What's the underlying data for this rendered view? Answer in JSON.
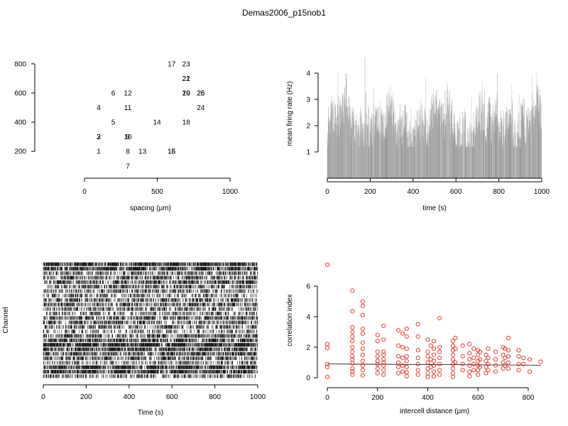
{
  "title": "Demas2006_p15nob1",
  "chart_data": [
    {
      "type": "scatter",
      "panel": "electrode-layout",
      "xlabel": "spacing (µm)",
      "ylabel": "",
      "xlim": [
        0,
        1000
      ],
      "ylim": [
        0,
        800
      ],
      "x_ticks": [
        0,
        500,
        1000
      ],
      "y_ticks": [
        200,
        400,
        600,
        800
      ],
      "points": [
        {
          "label": "1",
          "x": 100,
          "y": 200
        },
        {
          "label": "2",
          "x": 100,
          "y": 300
        },
        {
          "label": "3",
          "x": 100,
          "y": 300
        },
        {
          "label": "4",
          "x": 100,
          "y": 500
        },
        {
          "label": "5",
          "x": 200,
          "y": 400
        },
        {
          "label": "6",
          "x": 200,
          "y": 600
        },
        {
          "label": "7",
          "x": 300,
          "y": 100
        },
        {
          "label": "8",
          "x": 300,
          "y": 200
        },
        {
          "label": "9",
          "x": 300,
          "y": 300
        },
        {
          "label": "10",
          "x": 300,
          "y": 300
        },
        {
          "label": "11",
          "x": 300,
          "y": 500
        },
        {
          "label": "12",
          "x": 300,
          "y": 600
        },
        {
          "label": "13",
          "x": 400,
          "y": 200
        },
        {
          "label": "14",
          "x": 500,
          "y": 400
        },
        {
          "label": "15",
          "x": 600,
          "y": 200
        },
        {
          "label": "16",
          "x": 600,
          "y": 200
        },
        {
          "label": "17",
          "x": 600,
          "y": 800
        },
        {
          "label": "18",
          "x": 700,
          "y": 400
        },
        {
          "label": "19",
          "x": 700,
          "y": 600
        },
        {
          "label": "20",
          "x": 700,
          "y": 600
        },
        {
          "label": "21",
          "x": 700,
          "y": 700
        },
        {
          "label": "22",
          "x": 700,
          "y": 700
        },
        {
          "label": "23",
          "x": 700,
          "y": 800
        },
        {
          "label": "24",
          "x": 800,
          "y": 500
        },
        {
          "label": "25",
          "x": 800,
          "y": 600
        },
        {
          "label": "26",
          "x": 800,
          "y": 600
        }
      ]
    },
    {
      "type": "bar",
      "panel": "mean-firing-rate",
      "xlabel": "time (s)",
      "ylabel": "mean firing rate (Hz)",
      "xlim": [
        0,
        1000
      ],
      "ylim": [
        0,
        4.5
      ],
      "x_ticks": [
        0,
        200,
        400,
        600,
        800,
        1000
      ],
      "y_ticks": [
        1,
        2,
        3,
        4
      ],
      "bin_seconds": 1,
      "typical_range_hz": [
        1.2,
        4.0
      ],
      "peak": {
        "x": 175,
        "y": 4.6
      }
    },
    {
      "type": "raster",
      "panel": "spike-raster",
      "xlabel": "Time (s)",
      "ylabel": "Channel",
      "xlim": [
        0,
        1000
      ],
      "x_ticks": [
        0,
        200,
        400,
        600,
        800,
        1000
      ],
      "n_channels": 26
    },
    {
      "type": "scatter",
      "panel": "correlation-index",
      "xlabel": "intercell distance (µm)",
      "ylabel": "correlation index",
      "xlim": [
        0,
        850
      ],
      "ylim": [
        0,
        7.5
      ],
      "x_ticks": [
        0,
        200,
        400,
        600,
        800
      ],
      "y_ticks": [
        0,
        2,
        4,
        6
      ],
      "point_color": "#e8271d",
      "fit_line": {
        "x": [
          0,
          850
        ],
        "y": [
          0.9,
          0.82
        ]
      },
      "distances": [
        0,
        100,
        141,
        200,
        224,
        283,
        300,
        316,
        361,
        400,
        412,
        424,
        447,
        500,
        510,
        539,
        566,
        583,
        600,
        608,
        632,
        640,
        670,
        700,
        707,
        721,
        762,
        781,
        806,
        849
      ],
      "points": [
        [
          0,
          7.4
        ],
        [
          0,
          2.2
        ],
        [
          0,
          1.95
        ],
        [
          0,
          0.9
        ],
        [
          0,
          0.7
        ],
        [
          0,
          0.05
        ],
        [
          100,
          5.7
        ],
        [
          100,
          4.35
        ],
        [
          100,
          3.3
        ],
        [
          100,
          3.0
        ],
        [
          100,
          2.7
        ],
        [
          100,
          2.4
        ],
        [
          100,
          2.0
        ],
        [
          100,
          1.7
        ],
        [
          100,
          1.4
        ],
        [
          100,
          1.2
        ],
        [
          100,
          0.95
        ],
        [
          100,
          0.6
        ],
        [
          100,
          0.4
        ],
        [
          100,
          0.2
        ],
        [
          141,
          5.0
        ],
        [
          141,
          4.7
        ],
        [
          141,
          4.1
        ],
        [
          141,
          3.2
        ],
        [
          141,
          2.9
        ],
        [
          141,
          2.3
        ],
        [
          141,
          1.9
        ],
        [
          141,
          1.5
        ],
        [
          141,
          1.1
        ],
        [
          141,
          0.8
        ],
        [
          141,
          0.5
        ],
        [
          141,
          0.15
        ],
        [
          200,
          2.8
        ],
        [
          200,
          2.4
        ],
        [
          200,
          1.7
        ],
        [
          200,
          1.4
        ],
        [
          200,
          1.1
        ],
        [
          200,
          0.9
        ],
        [
          200,
          0.6
        ],
        [
          200,
          0.3
        ],
        [
          224,
          3.4
        ],
        [
          224,
          2.5
        ],
        [
          224,
          1.7
        ],
        [
          224,
          1.5
        ],
        [
          224,
          1.2
        ],
        [
          224,
          1.0
        ],
        [
          224,
          0.8
        ],
        [
          224,
          0.5
        ],
        [
          224,
          0.2
        ],
        [
          283,
          3.1
        ],
        [
          283,
          2.1
        ],
        [
          283,
          1.4
        ],
        [
          283,
          1.0
        ],
        [
          283,
          0.7
        ],
        [
          283,
          0.3
        ],
        [
          300,
          2.9
        ],
        [
          300,
          2.0
        ],
        [
          300,
          1.3
        ],
        [
          300,
          0.8
        ],
        [
          300,
          0.4
        ],
        [
          316,
          3.2
        ],
        [
          316,
          2.7
        ],
        [
          316,
          1.9
        ],
        [
          316,
          1.4
        ],
        [
          316,
          1.1
        ],
        [
          316,
          0.7
        ],
        [
          316,
          0.35
        ],
        [
          316,
          0.1
        ],
        [
          361,
          3.5
        ],
        [
          361,
          2.7
        ],
        [
          361,
          1.8
        ],
        [
          361,
          1.3
        ],
        [
          361,
          0.9
        ],
        [
          361,
          0.5
        ],
        [
          361,
          0.2
        ],
        [
          400,
          2.5
        ],
        [
          400,
          1.7
        ],
        [
          400,
          1.4
        ],
        [
          400,
          1.0
        ],
        [
          400,
          0.6
        ],
        [
          400,
          0.3
        ],
        [
          400,
          0.05
        ],
        [
          412,
          2.1
        ],
        [
          412,
          1.2
        ],
        [
          412,
          0.7
        ],
        [
          424,
          2.4
        ],
        [
          424,
          1.9
        ],
        [
          424,
          1.5
        ],
        [
          424,
          1.1
        ],
        [
          424,
          0.8
        ],
        [
          424,
          0.4
        ],
        [
          424,
          0.1
        ],
        [
          447,
          3.9
        ],
        [
          447,
          2.0
        ],
        [
          447,
          1.7
        ],
        [
          447,
          1.3
        ],
        [
          447,
          0.9
        ],
        [
          447,
          0.5
        ],
        [
          447,
          0.2
        ],
        [
          500,
          2.4
        ],
        [
          500,
          2.1
        ],
        [
          500,
          1.8
        ],
        [
          500,
          1.5
        ],
        [
          500,
          1.2
        ],
        [
          500,
          0.9
        ],
        [
          500,
          0.6
        ],
        [
          500,
          0.3
        ],
        [
          500,
          0.05
        ],
        [
          510,
          2.6
        ],
        [
          510,
          1.9
        ],
        [
          510,
          1.0
        ],
        [
          539,
          2.1
        ],
        [
          539,
          1.4
        ],
        [
          539,
          0.9
        ],
        [
          539,
          0.5
        ],
        [
          566,
          2.2
        ],
        [
          566,
          1.6
        ],
        [
          566,
          1.2
        ],
        [
          566,
          0.8
        ],
        [
          566,
          0.4
        ],
        [
          566,
          0.1
        ],
        [
          583,
          1.9
        ],
        [
          583,
          1.3
        ],
        [
          583,
          0.9
        ],
        [
          583,
          0.5
        ],
        [
          600,
          1.8
        ],
        [
          600,
          1.5
        ],
        [
          600,
          1.1
        ],
        [
          600,
          0.8
        ],
        [
          600,
          0.5
        ],
        [
          600,
          0.2
        ],
        [
          608,
          1.7
        ],
        [
          608,
          1.2
        ],
        [
          608,
          0.7
        ],
        [
          632,
          1.5
        ],
        [
          632,
          1.1
        ],
        [
          632,
          0.7
        ],
        [
          632,
          0.3
        ],
        [
          640,
          1.9
        ],
        [
          640,
          1.3
        ],
        [
          640,
          0.9
        ],
        [
          640,
          0.5
        ],
        [
          670,
          1.7
        ],
        [
          670,
          1.2
        ],
        [
          670,
          0.8
        ],
        [
          670,
          0.4
        ],
        [
          700,
          2.0
        ],
        [
          700,
          1.5
        ],
        [
          700,
          1.0
        ],
        [
          700,
          0.6
        ],
        [
          707,
          1.9
        ],
        [
          707,
          1.3
        ],
        [
          707,
          0.8
        ],
        [
          721,
          2.6
        ],
        [
          721,
          1.8
        ],
        [
          721,
          1.4
        ],
        [
          721,
          1.0
        ],
        [
          721,
          0.6
        ],
        [
          762,
          1.8
        ],
        [
          762,
          1.4
        ],
        [
          762,
          0.9
        ],
        [
          762,
          0.5
        ],
        [
          781,
          1.3
        ],
        [
          781,
          0.9
        ],
        [
          806,
          1.2
        ],
        [
          806,
          0.4
        ],
        [
          849,
          1.05
        ]
      ]
    }
  ]
}
